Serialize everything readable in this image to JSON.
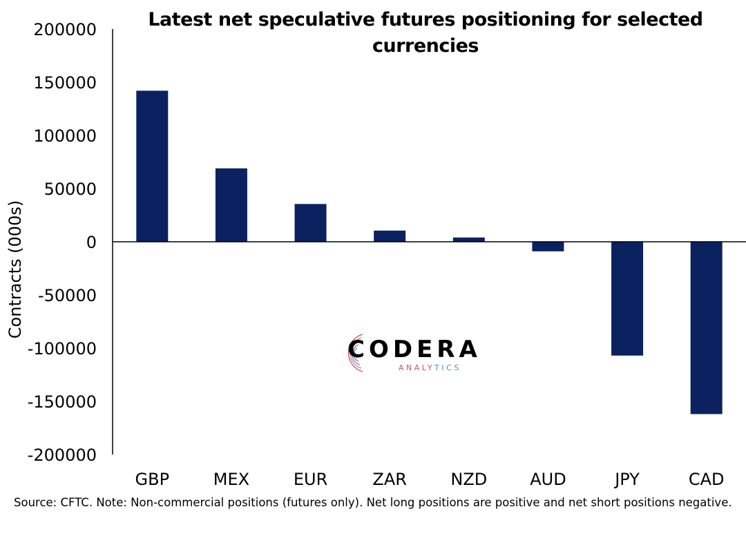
{
  "chart_data": {
    "type": "bar",
    "title": "Latest net speculative futures positioning for selected currencies",
    "ylabel": "Contracts (000s)",
    "xlabel": "",
    "categories": [
      "GBP",
      "MEX",
      "EUR",
      "ZAR",
      "NZD",
      "AUD",
      "JPY",
      "CAD"
    ],
    "values": [
      142000,
      69000,
      35500,
      10500,
      4000,
      -9000,
      -107000,
      -162000
    ],
    "ylim": [
      -200000,
      200000
    ],
    "yticks": [
      200000,
      150000,
      100000,
      50000,
      0,
      -50000,
      -100000,
      -150000,
      -200000
    ],
    "ytick_labels": [
      "200000",
      "150000",
      "100000",
      "50000",
      "0",
      "-50000",
      "-100000",
      "-150000",
      "-200000"
    ],
    "grid": false,
    "legend": "none",
    "bar_color": "#0b2260"
  },
  "footer": {
    "note": "Source: CFTC. Note: Non-commercial positions (futures only). Net long positions are positive and net short positions negative."
  },
  "logo": {
    "name": "CODERA",
    "sub_a": "ANALY",
    "sub_b": "TICS"
  }
}
